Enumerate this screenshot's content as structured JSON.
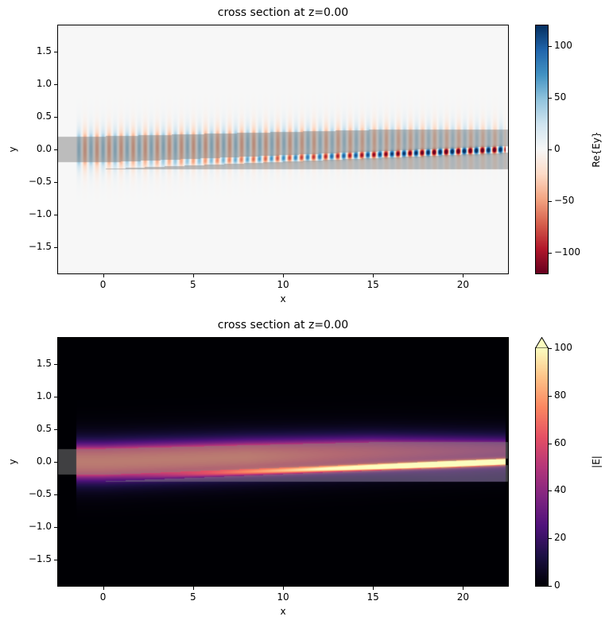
{
  "chart_data": [
    {
      "type": "heatmap",
      "title": "cross section at z=0.00",
      "xlabel": "x",
      "ylabel": "y",
      "xlim": [
        -2.5,
        22.5
      ],
      "ylim": [
        -1.9,
        1.9
      ],
      "xticks": [
        "0",
        "5",
        "10",
        "15",
        "20"
      ],
      "xtick_values": [
        0,
        5,
        10,
        15,
        20
      ],
      "yticks": [
        "−1.5",
        "−1.0",
        "−0.5",
        "0.0",
        "0.5",
        "1.0",
        "1.5"
      ],
      "ytick_values": [
        -1.5,
        -1.0,
        -0.5,
        0.0,
        0.5,
        1.0,
        1.5
      ],
      "colormap": "RdBu",
      "colorbar": {
        "label": "Re{Ey}",
        "range": [
          -120,
          120
        ],
        "ticks": [
          "−100",
          "−50",
          "0",
          "50",
          "100"
        ],
        "tick_values": [
          -100,
          -50,
          0,
          50,
          100
        ],
        "extend": "none"
      },
      "field": "real"
    },
    {
      "type": "heatmap",
      "title": "cross section at z=0.00",
      "xlabel": "x",
      "ylabel": "y",
      "xlim": [
        -2.5,
        22.5
      ],
      "ylim": [
        -1.9,
        1.9
      ],
      "xticks": [
        "0",
        "5",
        "10",
        "15",
        "20"
      ],
      "xtick_values": [
        0,
        5,
        10,
        15,
        20
      ],
      "yticks": [
        "−1.5",
        "−1.0",
        "−0.5",
        "0.0",
        "0.5",
        "1.0",
        "1.5"
      ],
      "ytick_values": [
        -1.5,
        -1.0,
        -0.5,
        0.0,
        0.5,
        1.0,
        1.5
      ],
      "colormap": "magma",
      "colorbar": {
        "label": "|E|",
        "range": [
          0,
          100
        ],
        "ticks": [
          "0",
          "20",
          "40",
          "60",
          "80",
          "100"
        ],
        "tick_values": [
          0,
          20,
          40,
          60,
          80,
          100
        ],
        "extend": "max"
      },
      "field": "abs"
    }
  ]
}
